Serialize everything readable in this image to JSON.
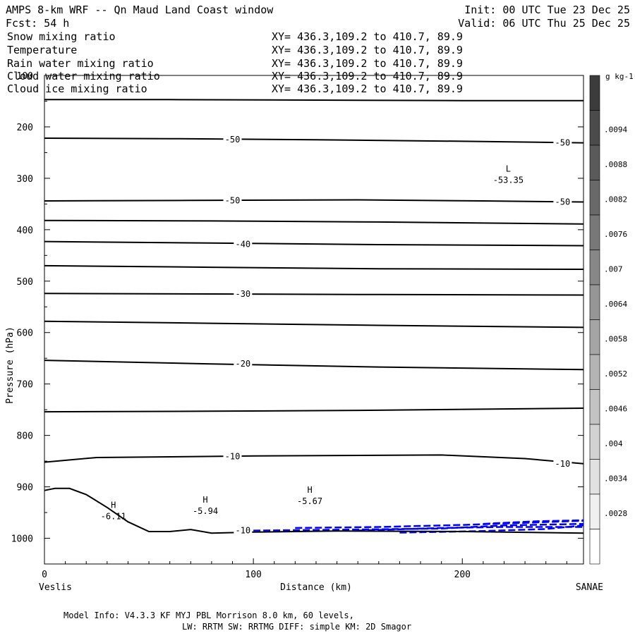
{
  "header": {
    "title": "AMPS 8-km WRF -- Qn Maud Land Coast window",
    "init": "Init: 00 UTC Tue 23 Dec 25",
    "fcst": "Fcst:   54 h",
    "valid": "Valid: 06 UTC Thu 25 Dec 25"
  },
  "fields": [
    {
      "name": "Snow mixing ratio",
      "xy": "XY= 436.3,109.2 to 410.7, 89.9",
      "color": "#000000"
    },
    {
      "name": "Temperature",
      "xy": "XY= 436.3,109.2 to 410.7, 89.9",
      "color": "#000000"
    },
    {
      "name": "Rain water mixing ratio",
      "xy": "XY= 436.3,109.2 to 410.7, 89.9",
      "color": "#ff0000"
    },
    {
      "name": "Cloud water mixing ratio",
      "xy": "XY= 436.3,109.2 to 410.7, 89.9",
      "color": "#0000ff"
    },
    {
      "name": "Cloud ice mixing ratio",
      "xy": "XY= 436.3,109.2 to 410.7, 89.9",
      "color": "#000000"
    }
  ],
  "footer": {
    "line1": "Model Info: V4.3.3   KF      MYJ PBL  Morrison             8.0 km,  60 levels,",
    "line2": "LW: RRTM SW: RRTMG   DIFF: simple KM: 2D Smagor"
  },
  "chart_data": {
    "type": "line",
    "title": "AMPS 8-km WRF -- Qn Maud Land Coast window",
    "xlabel": "Distance (km)",
    "ylabel": "Pressure (hPa)",
    "xlim": [
      0,
      258
    ],
    "ylim": [
      1050,
      100
    ],
    "x_ticks": [
      0,
      100,
      200
    ],
    "y_ticks": [
      100,
      200,
      300,
      400,
      500,
      600,
      700,
      800,
      900,
      1000
    ],
    "x_end_labels": {
      "left": "Veslis",
      "right": "SANAE"
    },
    "isotherms": [
      {
        "points": [
          [
            0,
            147
          ],
          [
            60,
            147
          ],
          [
            130,
            148
          ],
          [
            200,
            149
          ],
          [
            258,
            149
          ]
        ],
        "label": ""
      },
      {
        "points": [
          [
            0,
            222
          ],
          [
            60,
            223
          ],
          [
            130,
            225
          ],
          [
            200,
            228
          ],
          [
            258,
            231
          ]
        ],
        "label": "-50"
      },
      {
        "points": [
          [
            0,
            344
          ],
          [
            70,
            343
          ],
          [
            150,
            342
          ],
          [
            210,
            344
          ],
          [
            258,
            346
          ]
        ],
        "label": "-50"
      },
      {
        "points": [
          [
            0,
            382
          ],
          [
            80,
            383
          ],
          [
            160,
            385
          ],
          [
            258,
            389
          ]
        ],
        "label": ""
      },
      {
        "points": [
          [
            0,
            423
          ],
          [
            80,
            426
          ],
          [
            160,
            429
          ],
          [
            258,
            431
          ]
        ],
        "label": "-40"
      },
      {
        "points": [
          [
            0,
            470
          ],
          [
            80,
            473
          ],
          [
            160,
            476
          ],
          [
            258,
            477
          ]
        ],
        "label": ""
      },
      {
        "points": [
          [
            0,
            524
          ],
          [
            80,
            525
          ],
          [
            160,
            526
          ],
          [
            258,
            527
          ]
        ],
        "label": "-30"
      },
      {
        "points": [
          [
            0,
            578
          ],
          [
            80,
            582
          ],
          [
            160,
            586
          ],
          [
            258,
            590
          ]
        ],
        "label": ""
      },
      {
        "points": [
          [
            0,
            654
          ],
          [
            80,
            661
          ],
          [
            160,
            667
          ],
          [
            258,
            672
          ]
        ],
        "label": "-20"
      },
      {
        "points": [
          [
            0,
            754
          ],
          [
            80,
            753
          ],
          [
            160,
            751
          ],
          [
            258,
            747
          ]
        ],
        "label": ""
      },
      {
        "points": [
          [
            0,
            852
          ],
          [
            25,
            843
          ],
          [
            100,
            840
          ],
          [
            190,
            838
          ],
          [
            230,
            845
          ],
          [
            258,
            855
          ]
        ],
        "label": "-10"
      }
    ],
    "terrain": [
      [
        0,
        907
      ],
      [
        5,
        903
      ],
      [
        12,
        903
      ],
      [
        20,
        915
      ],
      [
        30,
        940
      ],
      [
        40,
        968
      ],
      [
        50,
        987
      ],
      [
        60,
        987
      ],
      [
        70,
        983
      ],
      [
        80,
        990
      ],
      [
        100,
        988
      ],
      [
        140,
        986
      ],
      [
        200,
        987
      ],
      [
        258,
        990
      ]
    ],
    "contour_labels": [
      {
        "text": "-50",
        "x": 90,
        "p": 225
      },
      {
        "text": "-50",
        "x": 248,
        "p": 231
      },
      {
        "text": "-50",
        "x": 90,
        "p": 343
      },
      {
        "text": "-50",
        "x": 248,
        "p": 346
      },
      {
        "text": "-40",
        "x": 95,
        "p": 428
      },
      {
        "text": "-30",
        "x": 95,
        "p": 525
      },
      {
        "text": "-20",
        "x": 95,
        "p": 661
      },
      {
        "text": "-10",
        "x": 90,
        "p": 841
      },
      {
        "text": "-10",
        "x": 248,
        "p": 855
      },
      {
        "text": "-10",
        "x": 95,
        "p": 985
      }
    ],
    "extrema": [
      {
        "type": "L",
        "value": "-53.35",
        "x": 222,
        "p": 306
      },
      {
        "type": "H",
        "value": "-6.11",
        "x": 33,
        "p": 960
      },
      {
        "type": "H",
        "value": "-5.94",
        "x": 77,
        "p": 950
      },
      {
        "type": "H",
        "value": "-5.67",
        "x": 127,
        "p": 931
      }
    ],
    "cloud_water_contours": [
      [
        [
          100,
          985
        ],
        [
          150,
          983
        ],
        [
          190,
          981
        ],
        [
          220,
          975
        ],
        [
          258,
          972
        ]
      ],
      [
        [
          120,
          980
        ],
        [
          160,
          978
        ],
        [
          200,
          974
        ],
        [
          230,
          970
        ],
        [
          258,
          966
        ]
      ],
      [
        [
          150,
          985
        ],
        [
          190,
          980
        ],
        [
          220,
          978
        ],
        [
          258,
          978
        ]
      ],
      [
        [
          170,
          989
        ],
        [
          210,
          986
        ],
        [
          240,
          982
        ],
        [
          258,
          975
        ]
      ],
      [
        [
          210,
          972
        ],
        [
          235,
          967
        ],
        [
          258,
          965
        ]
      ]
    ],
    "colorbar": {
      "units": "g kg-1",
      "labels": [
        ".0094",
        ".0088",
        ".0082",
        ".0076",
        ".007",
        ".0064",
        ".0058",
        ".0052",
        ".0046",
        ".004",
        ".0034",
        ".0028"
      ]
    }
  }
}
